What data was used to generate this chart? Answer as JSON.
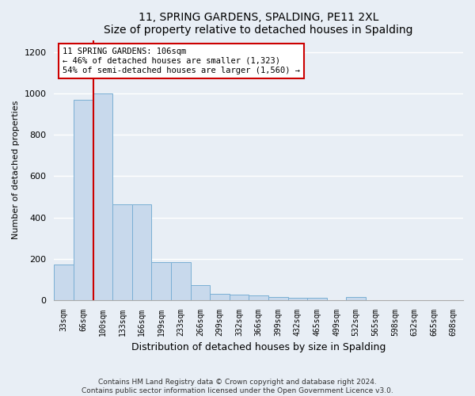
{
  "title": "11, SPRING GARDENS, SPALDING, PE11 2XL",
  "subtitle": "Size of property relative to detached houses in Spalding",
  "xlabel": "Distribution of detached houses by size in Spalding",
  "ylabel": "Number of detached properties",
  "bar_color": "#c8d9ec",
  "bar_edge_color": "#7aafd4",
  "background_color": "#e8eef5",
  "grid_color": "#ffffff",
  "annotation_box_color": "#cc0000",
  "annotation_text": "11 SPRING GARDENS: 106sqm\n← 46% of detached houses are smaller (1,323)\n54% of semi-detached houses are larger (1,560) →",
  "red_line_color": "#cc0000",
  "categories": [
    "33sqm",
    "66sqm",
    "100sqm",
    "133sqm",
    "166sqm",
    "199sqm",
    "233sqm",
    "266sqm",
    "299sqm",
    "332sqm",
    "366sqm",
    "399sqm",
    "432sqm",
    "465sqm",
    "499sqm",
    "532sqm",
    "565sqm",
    "598sqm",
    "632sqm",
    "665sqm",
    "698sqm"
  ],
  "values": [
    170,
    970,
    1000,
    465,
    465,
    185,
    185,
    70,
    30,
    25,
    20,
    15,
    10,
    10,
    0,
    15,
    0,
    0,
    0,
    0,
    0
  ],
  "ylim": [
    0,
    1260
  ],
  "yticks": [
    0,
    200,
    400,
    600,
    800,
    1000,
    1200
  ],
  "red_line_bar_index": 2,
  "footer": "Contains HM Land Registry data © Crown copyright and database right 2024.\nContains public sector information licensed under the Open Government Licence v3.0.",
  "figsize": [
    6.0,
    5.0
  ],
  "dpi": 100
}
